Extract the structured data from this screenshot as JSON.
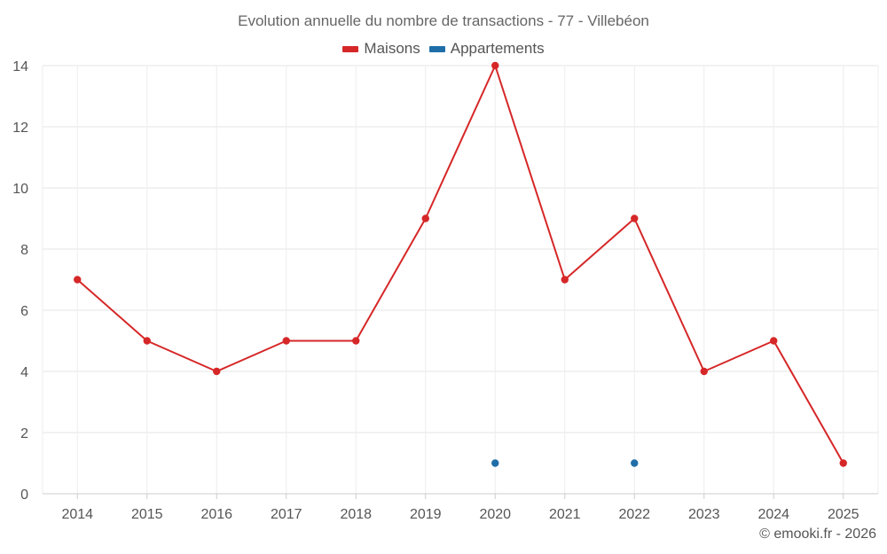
{
  "chart_data": {
    "type": "line",
    "title": "Evolution annuelle du nombre de transactions - 77 - Villebéon",
    "xlabel": "",
    "ylabel": "",
    "categories": [
      "2014",
      "2015",
      "2016",
      "2017",
      "2018",
      "2019",
      "2020",
      "2021",
      "2022",
      "2023",
      "2024",
      "2025"
    ],
    "ylim": [
      0,
      14
    ],
    "yticks": [
      0,
      2,
      4,
      6,
      8,
      10,
      12,
      14
    ],
    "grid": true,
    "legend_position": "top-center",
    "series": [
      {
        "name": "Maisons",
        "color": "#d62728",
        "show_line": true,
        "values": [
          7,
          5,
          4,
          5,
          5,
          9,
          14,
          7,
          9,
          4,
          5,
          1
        ]
      },
      {
        "name": "Appartements",
        "color": "#1f6ea8",
        "show_line": false,
        "values": [
          null,
          null,
          null,
          null,
          null,
          null,
          1,
          null,
          1,
          null,
          null,
          null
        ]
      }
    ]
  },
  "footer": {
    "credit": "© emooki.fr - 2026"
  }
}
